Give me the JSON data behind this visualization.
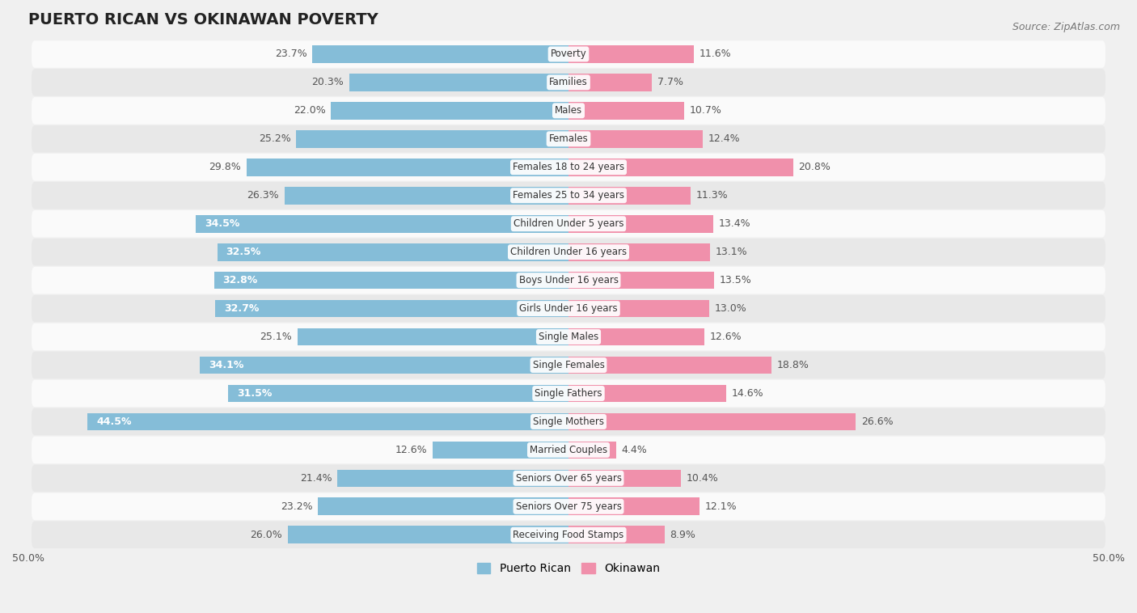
{
  "title": "PUERTO RICAN VS OKINAWAN POVERTY",
  "source": "Source: ZipAtlas.com",
  "categories": [
    "Poverty",
    "Families",
    "Males",
    "Females",
    "Females 18 to 24 years",
    "Females 25 to 34 years",
    "Children Under 5 years",
    "Children Under 16 years",
    "Boys Under 16 years",
    "Girls Under 16 years",
    "Single Males",
    "Single Females",
    "Single Fathers",
    "Single Mothers",
    "Married Couples",
    "Seniors Over 65 years",
    "Seniors Over 75 years",
    "Receiving Food Stamps"
  ],
  "puerto_rican": [
    23.7,
    20.3,
    22.0,
    25.2,
    29.8,
    26.3,
    34.5,
    32.5,
    32.8,
    32.7,
    25.1,
    34.1,
    31.5,
    44.5,
    12.6,
    21.4,
    23.2,
    26.0
  ],
  "okinawan": [
    11.6,
    7.7,
    10.7,
    12.4,
    20.8,
    11.3,
    13.4,
    13.1,
    13.5,
    13.0,
    12.6,
    18.8,
    14.6,
    26.6,
    4.4,
    10.4,
    12.1,
    8.9
  ],
  "puerto_rican_color": "#85bdd8",
  "okinawan_color": "#f090ab",
  "bg_color": "#f0f0f0",
  "row_bg_light": "#fafafa",
  "row_bg_dark": "#e8e8e8",
  "xlim": 50.0,
  "legend_pr": "Puerto Rican",
  "legend_ok": "Okinawan",
  "title_fontsize": 14,
  "source_fontsize": 9,
  "axis_label_fontsize": 9,
  "bar_label_fontsize": 9,
  "category_fontsize": 8.5
}
